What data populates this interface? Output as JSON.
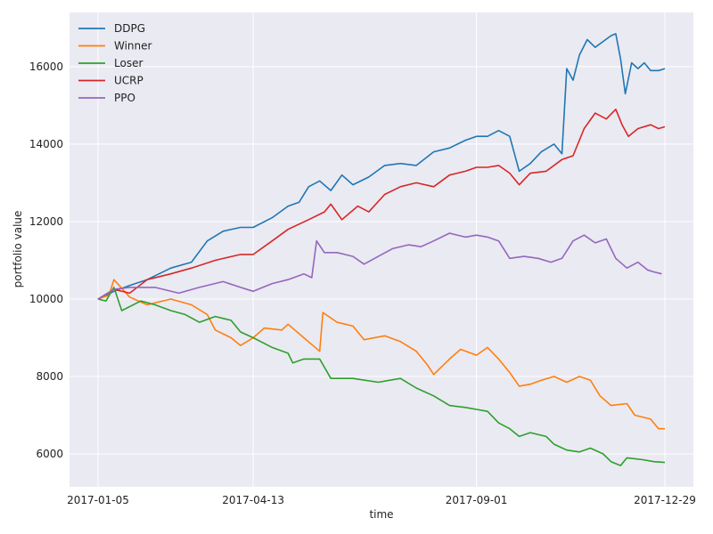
{
  "chart_data": {
    "type": "line",
    "xlabel": "time",
    "ylabel": "portfolio value",
    "x_ticks": [
      "2017-01-05",
      "2017-04-13",
      "2017-09-01",
      "2017-12-29"
    ],
    "x_range": [
      "2017-01-05",
      "2017-12-29"
    ],
    "y_ticks": [
      6000,
      8000,
      10000,
      12000,
      14000,
      16000
    ],
    "ylim": [
      5150,
      17400
    ],
    "grid": true,
    "legend_position": "top-left",
    "series": [
      {
        "name": "DDPG",
        "color": "#1f77b4",
        "points": [
          [
            "2017-01-05",
            10000
          ],
          [
            "2017-01-15",
            10200
          ],
          [
            "2017-01-25",
            10350
          ],
          [
            "2017-02-05",
            10500
          ],
          [
            "2017-02-20",
            10800
          ],
          [
            "2017-03-05",
            10950
          ],
          [
            "2017-03-15",
            11500
          ],
          [
            "2017-03-25",
            11750
          ],
          [
            "2017-04-05",
            11850
          ],
          [
            "2017-04-13",
            11850
          ],
          [
            "2017-04-25",
            12100
          ],
          [
            "2017-05-05",
            12400
          ],
          [
            "2017-05-12",
            12500
          ],
          [
            "2017-05-18",
            12900
          ],
          [
            "2017-05-25",
            13050
          ],
          [
            "2017-06-01",
            12800
          ],
          [
            "2017-06-08",
            13200
          ],
          [
            "2017-06-15",
            12950
          ],
          [
            "2017-06-25",
            13150
          ],
          [
            "2017-07-05",
            13450
          ],
          [
            "2017-07-15",
            13500
          ],
          [
            "2017-07-25",
            13450
          ],
          [
            "2017-08-05",
            13800
          ],
          [
            "2017-08-15",
            13900
          ],
          [
            "2017-08-25",
            14100
          ],
          [
            "2017-09-01",
            14200
          ],
          [
            "2017-09-08",
            14200
          ],
          [
            "2017-09-15",
            14350
          ],
          [
            "2017-09-22",
            14200
          ],
          [
            "2017-09-28",
            13300
          ],
          [
            "2017-10-05",
            13500
          ],
          [
            "2017-10-12",
            13800
          ],
          [
            "2017-10-20",
            14000
          ],
          [
            "2017-10-25",
            13750
          ],
          [
            "2017-10-28",
            15950
          ],
          [
            "2017-11-01",
            15650
          ],
          [
            "2017-11-05",
            16300
          ],
          [
            "2017-11-10",
            16700
          ],
          [
            "2017-11-15",
            16500
          ],
          [
            "2017-11-20",
            16650
          ],
          [
            "2017-11-25",
            16800
          ],
          [
            "2017-11-28",
            16850
          ],
          [
            "2017-12-01",
            16200
          ],
          [
            "2017-12-04",
            15300
          ],
          [
            "2017-12-08",
            16100
          ],
          [
            "2017-12-12",
            15950
          ],
          [
            "2017-12-16",
            16100
          ],
          [
            "2017-12-20",
            15900
          ],
          [
            "2017-12-25",
            15900
          ],
          [
            "2017-12-29",
            15950
          ]
        ]
      },
      {
        "name": "Winner",
        "color": "#ff7f0e",
        "points": [
          [
            "2017-01-05",
            10000
          ],
          [
            "2017-01-12",
            10100
          ],
          [
            "2017-01-15",
            10500
          ],
          [
            "2017-01-25",
            10050
          ],
          [
            "2017-02-05",
            9850
          ],
          [
            "2017-02-20",
            10000
          ],
          [
            "2017-03-05",
            9850
          ],
          [
            "2017-03-15",
            9600
          ],
          [
            "2017-03-20",
            9200
          ],
          [
            "2017-03-30",
            9000
          ],
          [
            "2017-04-05",
            8800
          ],
          [
            "2017-04-13",
            9000
          ],
          [
            "2017-04-20",
            9250
          ],
          [
            "2017-05-01",
            9200
          ],
          [
            "2017-05-05",
            9350
          ],
          [
            "2017-05-15",
            9000
          ],
          [
            "2017-05-25",
            8650
          ],
          [
            "2017-05-27",
            9650
          ],
          [
            "2017-06-05",
            9400
          ],
          [
            "2017-06-15",
            9300
          ],
          [
            "2017-06-22",
            8950
          ],
          [
            "2017-07-05",
            9050
          ],
          [
            "2017-07-15",
            8900
          ],
          [
            "2017-07-25",
            8650
          ],
          [
            "2017-08-01",
            8300
          ],
          [
            "2017-08-05",
            8050
          ],
          [
            "2017-08-15",
            8450
          ],
          [
            "2017-08-22",
            8700
          ],
          [
            "2017-09-01",
            8550
          ],
          [
            "2017-09-08",
            8750
          ],
          [
            "2017-09-15",
            8450
          ],
          [
            "2017-09-22",
            8100
          ],
          [
            "2017-09-28",
            7750
          ],
          [
            "2017-10-05",
            7800
          ],
          [
            "2017-10-12",
            7900
          ],
          [
            "2017-10-20",
            8000
          ],
          [
            "2017-10-28",
            7850
          ],
          [
            "2017-11-05",
            8000
          ],
          [
            "2017-11-12",
            7900
          ],
          [
            "2017-11-18",
            7500
          ],
          [
            "2017-11-25",
            7250
          ],
          [
            "2017-12-05",
            7300
          ],
          [
            "2017-12-10",
            7000
          ],
          [
            "2017-12-20",
            6900
          ],
          [
            "2017-12-25",
            6650
          ],
          [
            "2017-12-29",
            6650
          ]
        ]
      },
      {
        "name": "Loser",
        "color": "#2ca02c",
        "points": [
          [
            "2017-01-05",
            10000
          ],
          [
            "2017-01-10",
            9950
          ],
          [
            "2017-01-15",
            10300
          ],
          [
            "2017-01-20",
            9700
          ],
          [
            "2017-02-01",
            9950
          ],
          [
            "2017-02-10",
            9850
          ],
          [
            "2017-02-20",
            9700
          ],
          [
            "2017-03-01",
            9600
          ],
          [
            "2017-03-10",
            9400
          ],
          [
            "2017-03-20",
            9550
          ],
          [
            "2017-03-30",
            9450
          ],
          [
            "2017-04-05",
            9150
          ],
          [
            "2017-04-13",
            9000
          ],
          [
            "2017-04-25",
            8750
          ],
          [
            "2017-05-05",
            8600
          ],
          [
            "2017-05-08",
            8350
          ],
          [
            "2017-05-15",
            8450
          ],
          [
            "2017-05-25",
            8450
          ],
          [
            "2017-06-01",
            7950
          ],
          [
            "2017-06-15",
            7950
          ],
          [
            "2017-07-01",
            7850
          ],
          [
            "2017-07-15",
            7950
          ],
          [
            "2017-07-25",
            7700
          ],
          [
            "2017-08-05",
            7500
          ],
          [
            "2017-08-15",
            7250
          ],
          [
            "2017-08-25",
            7200
          ],
          [
            "2017-09-01",
            7150
          ],
          [
            "2017-09-08",
            7100
          ],
          [
            "2017-09-15",
            6800
          ],
          [
            "2017-09-22",
            6650
          ],
          [
            "2017-09-28",
            6450
          ],
          [
            "2017-10-05",
            6550
          ],
          [
            "2017-10-15",
            6450
          ],
          [
            "2017-10-20",
            6250
          ],
          [
            "2017-10-28",
            6100
          ],
          [
            "2017-11-05",
            6050
          ],
          [
            "2017-11-12",
            6150
          ],
          [
            "2017-11-20",
            6000
          ],
          [
            "2017-11-25",
            5800
          ],
          [
            "2017-12-01",
            5700
          ],
          [
            "2017-12-05",
            5900
          ],
          [
            "2017-12-15",
            5850
          ],
          [
            "2017-12-22",
            5800
          ],
          [
            "2017-12-29",
            5780
          ]
        ]
      },
      {
        "name": "UCRP",
        "color": "#d62728",
        "points": [
          [
            "2017-01-05",
            10000
          ],
          [
            "2017-01-15",
            10250
          ],
          [
            "2017-01-25",
            10150
          ],
          [
            "2017-02-05",
            10500
          ],
          [
            "2017-02-20",
            10650
          ],
          [
            "2017-03-05",
            10800
          ],
          [
            "2017-03-20",
            11000
          ],
          [
            "2017-04-05",
            11150
          ],
          [
            "2017-04-13",
            11150
          ],
          [
            "2017-04-25",
            11500
          ],
          [
            "2017-05-05",
            11800
          ],
          [
            "2017-05-18",
            12050
          ],
          [
            "2017-05-28",
            12250
          ],
          [
            "2017-06-01",
            12450
          ],
          [
            "2017-06-08",
            12050
          ],
          [
            "2017-06-18",
            12400
          ],
          [
            "2017-06-25",
            12250
          ],
          [
            "2017-07-05",
            12700
          ],
          [
            "2017-07-15",
            12900
          ],
          [
            "2017-07-25",
            13000
          ],
          [
            "2017-08-05",
            12900
          ],
          [
            "2017-08-15",
            13200
          ],
          [
            "2017-08-25",
            13300
          ],
          [
            "2017-09-01",
            13400
          ],
          [
            "2017-09-08",
            13400
          ],
          [
            "2017-09-15",
            13450
          ],
          [
            "2017-09-22",
            13250
          ],
          [
            "2017-09-28",
            12950
          ],
          [
            "2017-10-05",
            13250
          ],
          [
            "2017-10-15",
            13300
          ],
          [
            "2017-10-25",
            13600
          ],
          [
            "2017-11-01",
            13700
          ],
          [
            "2017-11-08",
            14400
          ],
          [
            "2017-11-15",
            14800
          ],
          [
            "2017-11-22",
            14650
          ],
          [
            "2017-11-28",
            14900
          ],
          [
            "2017-12-02",
            14500
          ],
          [
            "2017-12-06",
            14200
          ],
          [
            "2017-12-12",
            14400
          ],
          [
            "2017-12-20",
            14500
          ],
          [
            "2017-12-25",
            14400
          ],
          [
            "2017-12-29",
            14450
          ]
        ]
      },
      {
        "name": "PPO",
        "color": "#9467bd",
        "points": [
          [
            "2017-01-05",
            10000
          ],
          [
            "2017-01-15",
            10250
          ],
          [
            "2017-01-25",
            10300
          ],
          [
            "2017-02-10",
            10300
          ],
          [
            "2017-02-25",
            10150
          ],
          [
            "2017-03-10",
            10300
          ],
          [
            "2017-03-25",
            10450
          ],
          [
            "2017-04-05",
            10300
          ],
          [
            "2017-04-13",
            10200
          ],
          [
            "2017-04-25",
            10400
          ],
          [
            "2017-05-05",
            10500
          ],
          [
            "2017-05-15",
            10650
          ],
          [
            "2017-05-20",
            10550
          ],
          [
            "2017-05-23",
            11500
          ],
          [
            "2017-05-28",
            11200
          ],
          [
            "2017-06-05",
            11200
          ],
          [
            "2017-06-15",
            11100
          ],
          [
            "2017-06-22",
            10900
          ],
          [
            "2017-07-01",
            11100
          ],
          [
            "2017-07-10",
            11300
          ],
          [
            "2017-07-20",
            11400
          ],
          [
            "2017-07-28",
            11350
          ],
          [
            "2017-08-05",
            11500
          ],
          [
            "2017-08-15",
            11700
          ],
          [
            "2017-08-25",
            11600
          ],
          [
            "2017-09-01",
            11650
          ],
          [
            "2017-09-08",
            11600
          ],
          [
            "2017-09-15",
            11500
          ],
          [
            "2017-09-22",
            11050
          ],
          [
            "2017-10-01",
            11100
          ],
          [
            "2017-10-10",
            11050
          ],
          [
            "2017-10-18",
            10950
          ],
          [
            "2017-10-25",
            11050
          ],
          [
            "2017-11-01",
            11500
          ],
          [
            "2017-11-08",
            11650
          ],
          [
            "2017-11-15",
            11450
          ],
          [
            "2017-11-22",
            11550
          ],
          [
            "2017-11-28",
            11050
          ],
          [
            "2017-12-05",
            10800
          ],
          [
            "2017-12-12",
            10950
          ],
          [
            "2017-12-18",
            10750
          ],
          [
            "2017-12-22",
            10700
          ],
          [
            "2017-12-27",
            10650
          ]
        ]
      }
    ]
  }
}
